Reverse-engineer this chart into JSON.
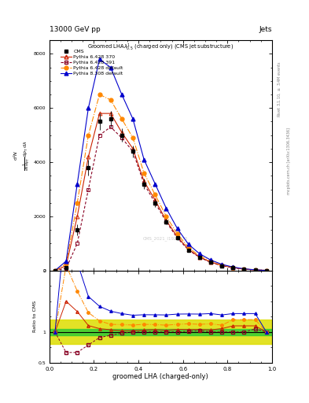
{
  "title_top": "13000 GeV pp",
  "title_right": "Jets",
  "plot_title": "Groomed LHA$\\lambda^{1}_{0.5}$ (charged only) (CMS jet substructure)",
  "xlabel": "groomed LHA (charged-only)",
  "ylabel_ratio": "Ratio to CMS",
  "right_label_top": "Rivet 3.1.10, $\\geq$ 3.4M events",
  "right_label_bot": "mcplots.cern.ch [arXiv:1306.3436]",
  "watermark": "CMS_2021_I1924975",
  "x_bins": [
    0.0,
    0.05,
    0.1,
    0.15,
    0.2,
    0.25,
    0.3,
    0.35,
    0.4,
    0.45,
    0.5,
    0.55,
    0.6,
    0.65,
    0.7,
    0.75,
    0.8,
    0.85,
    0.9,
    0.95,
    1.0
  ],
  "cms_y": [
    0.0,
    0.12,
    1.5,
    3.8,
    5.5,
    5.6,
    5.0,
    4.4,
    3.2,
    2.5,
    1.8,
    1.2,
    0.75,
    0.48,
    0.3,
    0.18,
    0.1,
    0.05,
    0.02,
    0.005
  ],
  "cms_yerr": [
    0.02,
    0.05,
    0.2,
    0.3,
    0.3,
    0.3,
    0.25,
    0.22,
    0.18,
    0.14,
    0.1,
    0.07,
    0.05,
    0.03,
    0.02,
    0.01,
    0.008,
    0.004,
    0.002,
    0.001
  ],
  "p6_370_y": [
    0.0,
    0.18,
    2.0,
    4.2,
    5.8,
    5.8,
    5.1,
    4.5,
    3.3,
    2.6,
    1.85,
    1.25,
    0.78,
    0.5,
    0.31,
    0.19,
    0.11,
    0.055,
    0.022,
    0.005
  ],
  "p6_391_y": [
    0.0,
    0.08,
    1.0,
    3.0,
    5.0,
    5.3,
    4.9,
    4.4,
    3.2,
    2.5,
    1.8,
    1.2,
    0.76,
    0.49,
    0.3,
    0.18,
    0.1,
    0.05,
    0.021,
    0.005
  ],
  "p6_def_y": [
    0.0,
    0.25,
    2.5,
    5.0,
    6.5,
    6.3,
    5.6,
    4.9,
    3.6,
    2.8,
    2.0,
    1.35,
    0.85,
    0.54,
    0.34,
    0.2,
    0.12,
    0.06,
    0.024,
    0.005
  ],
  "p8_def_y": [
    0.0,
    0.35,
    3.2,
    6.0,
    7.8,
    7.5,
    6.5,
    5.6,
    4.1,
    3.2,
    2.3,
    1.55,
    0.97,
    0.62,
    0.39,
    0.23,
    0.13,
    0.065,
    0.026,
    0.005
  ],
  "ylim_main_max": 8500,
  "ylim_ratio": [
    0.5,
    2.0
  ],
  "yticks_main": [
    0,
    2000,
    4000,
    6000,
    8000
  ],
  "color_cms": "#000000",
  "color_p6_370": "#cc2200",
  "color_p6_391": "#880022",
  "color_p6_def": "#ff8800",
  "color_p8_def": "#0000cc",
  "ratio_green_inner": 0.05,
  "ratio_yellow_outer": 0.2,
  "green_color": "#33cc33",
  "yellow_color": "#dddd00"
}
